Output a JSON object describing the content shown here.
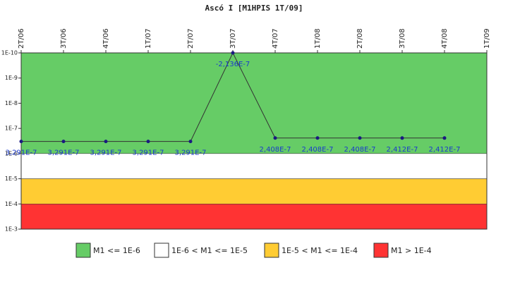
{
  "chart_data": {
    "type": "line",
    "title": "Ascó I [M1HPIS 1T/09]",
    "categories": [
      "2T/06",
      "3T/06",
      "4T/06",
      "1T/07",
      "2T/07",
      "3T/07",
      "4T/07",
      "1T/08",
      "2T/08",
      "3T/08",
      "4T/08",
      "1T/09"
    ],
    "values": [
      3.291e-07,
      3.291e-07,
      3.291e-07,
      3.291e-07,
      3.291e-07,
      -2.136e-07,
      2.408e-07,
      2.408e-07,
      2.408e-07,
      2.412e-07,
      2.412e-07,
      null
    ],
    "value_labels": [
      "3,291E-7",
      "3,291E-7",
      "3,291E-7",
      "3,291E-7",
      "3,291E-7",
      "-2,136E-7",
      "2,408E-7",
      "2,408E-7",
      "2,408E-7",
      "2,412E-7",
      "2,412E-7",
      null
    ],
    "line_color": "#333333",
    "marker_color": "#1a1a80",
    "label_color": "#1a3acc",
    "log_scale": true,
    "y_inverted": true,
    "ylim": [
      1e-10,
      0.001
    ],
    "yticks": [
      {
        "value": 1e-10,
        "label": "1E-10"
      },
      {
        "value": 1e-09,
        "label": "1E-9"
      },
      {
        "value": 1e-08,
        "label": "1E-8"
      },
      {
        "value": 1e-07,
        "label": "1E-7"
      },
      {
        "value": 1e-06,
        "label": "1E-6"
      },
      {
        "value": 1e-05,
        "label": "1E-5"
      },
      {
        "value": 0.0001,
        "label": "1E-4"
      },
      {
        "value": 0.001,
        "label": "1E-3"
      }
    ],
    "bands": [
      {
        "name": "M1 <= 1E-6",
        "color": "#66cc66",
        "from": 1e-10,
        "to": 1e-06
      },
      {
        "name": "1E-6 < M1 <= 1E-5",
        "color": "#ffffff",
        "from": 1e-06,
        "to": 1e-05
      },
      {
        "name": "1E-5 < M1 <= 1E-4",
        "color": "#ffcc33",
        "from": 1e-05,
        "to": 0.0001
      },
      {
        "name": "M1 > 1E-4",
        "color": "#ff3333",
        "from": 0.0001,
        "to": 0.001
      }
    ]
  }
}
